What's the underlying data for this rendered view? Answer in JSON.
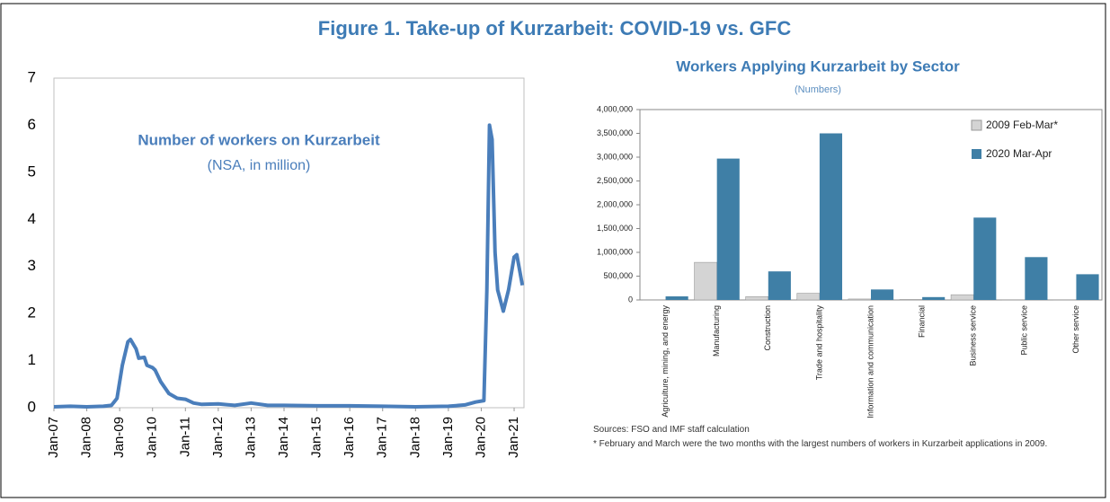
{
  "title": "Figure 1. Take-up of Kurzarbeit: COVID-19 vs. GFC",
  "chart_data": [
    {
      "type": "line",
      "annotations": [
        "Number of workers on Kurzarbeit",
        "(NSA, in million)"
      ],
      "color": "#4a7ebb",
      "x": [
        2007.0,
        2007.5,
        2008.0,
        2008.5,
        2008.75,
        2008.92,
        2009.08,
        2009.25,
        2009.33,
        2009.5,
        2009.58,
        2009.75,
        2009.83,
        2010.0,
        2010.08,
        2010.25,
        2010.5,
        2010.75,
        2011.0,
        2011.25,
        2011.5,
        2012.0,
        2012.5,
        2013.0,
        2013.5,
        2014.0,
        2015.0,
        2016.0,
        2017.0,
        2018.0,
        2019.0,
        2019.5,
        2019.83,
        2020.08,
        2020.17,
        2020.25,
        2020.33,
        2020.42,
        2020.5,
        2020.67,
        2020.83,
        2021.0,
        2021.08,
        2021.25
      ],
      "values": [
        0.02,
        0.03,
        0.02,
        0.03,
        0.05,
        0.2,
        0.9,
        1.4,
        1.45,
        1.25,
        1.05,
        1.07,
        0.9,
        0.85,
        0.8,
        0.55,
        0.3,
        0.2,
        0.18,
        0.1,
        0.07,
        0.08,
        0.05,
        0.1,
        0.05,
        0.05,
        0.04,
        0.04,
        0.03,
        0.02,
        0.03,
        0.06,
        0.12,
        0.15,
        2.5,
        6.0,
        5.7,
        3.3,
        2.5,
        2.05,
        2.5,
        3.2,
        3.25,
        2.6
      ],
      "xlim": [
        2007,
        2021.3
      ],
      "xticks": [
        {
          "value": 2007,
          "label": "Jan-07"
        },
        {
          "value": 2008,
          "label": "Jan-08"
        },
        {
          "value": 2009,
          "label": "Jan-09"
        },
        {
          "value": 2010,
          "label": "Jan-10"
        },
        {
          "value": 2011,
          "label": "Jan-11"
        },
        {
          "value": 2012,
          "label": "Jan-12"
        },
        {
          "value": 2013,
          "label": "Jan-13"
        },
        {
          "value": 2014,
          "label": "Jan-14"
        },
        {
          "value": 2015,
          "label": "Jan-15"
        },
        {
          "value": 2016,
          "label": "Jan-16"
        },
        {
          "value": 2017,
          "label": "Jan-17"
        },
        {
          "value": 2018,
          "label": "Jan-18"
        },
        {
          "value": 2019,
          "label": "Jan-19"
        },
        {
          "value": 2020,
          "label": "Jan-20"
        },
        {
          "value": 2021,
          "label": "Jan-21"
        }
      ],
      "ylim": [
        0,
        7
      ],
      "yticks": [
        0,
        1,
        2,
        3,
        4,
        5,
        6,
        7
      ],
      "grid": false
    },
    {
      "type": "bar",
      "title": "Workers Applying Kurzarbeit by Sector",
      "subtitle": "(Numbers)",
      "categories": [
        "Agriculture, mining, and energy",
        "Manufacturing",
        "Construction",
        "Trade and hospitality",
        "Information and communication",
        "Financial",
        "Business service",
        "Public service",
        "Other service"
      ],
      "series": [
        {
          "name": "2009 Feb-Mar*",
          "color": "#d4d4d4",
          "values": [
            5000,
            790000,
            70000,
            140000,
            20000,
            10000,
            110000,
            5000,
            5000
          ]
        },
        {
          "name": "2020 Mar-Apr",
          "color": "#3f7fa6",
          "values": [
            75000,
            2970000,
            600000,
            3500000,
            220000,
            60000,
            1730000,
            900000,
            540000
          ]
        }
      ],
      "ylim": [
        0,
        4000000
      ],
      "yticks": [
        0,
        {
          "value": 500000,
          "label": "500,000"
        },
        {
          "value": 1000000,
          "label": "1,000,000"
        },
        {
          "value": 1500000,
          "label": "1,500,000"
        },
        {
          "value": 2000000,
          "label": "2,000,000"
        },
        {
          "value": 2500000,
          "label": "2,500,000"
        },
        {
          "value": 3000000,
          "label": "3,000,000"
        },
        {
          "value": 3500000,
          "label": "3,500,000"
        },
        {
          "value": 4000000,
          "label": "4,000,000"
        }
      ],
      "legend": "upper right",
      "grid": false,
      "notes": [
        "Sources: FSO and IMF staff calculation",
        "* February and March were the two months with the largest numbers of workers in Kurzarbeit applications in 2009."
      ]
    }
  ]
}
